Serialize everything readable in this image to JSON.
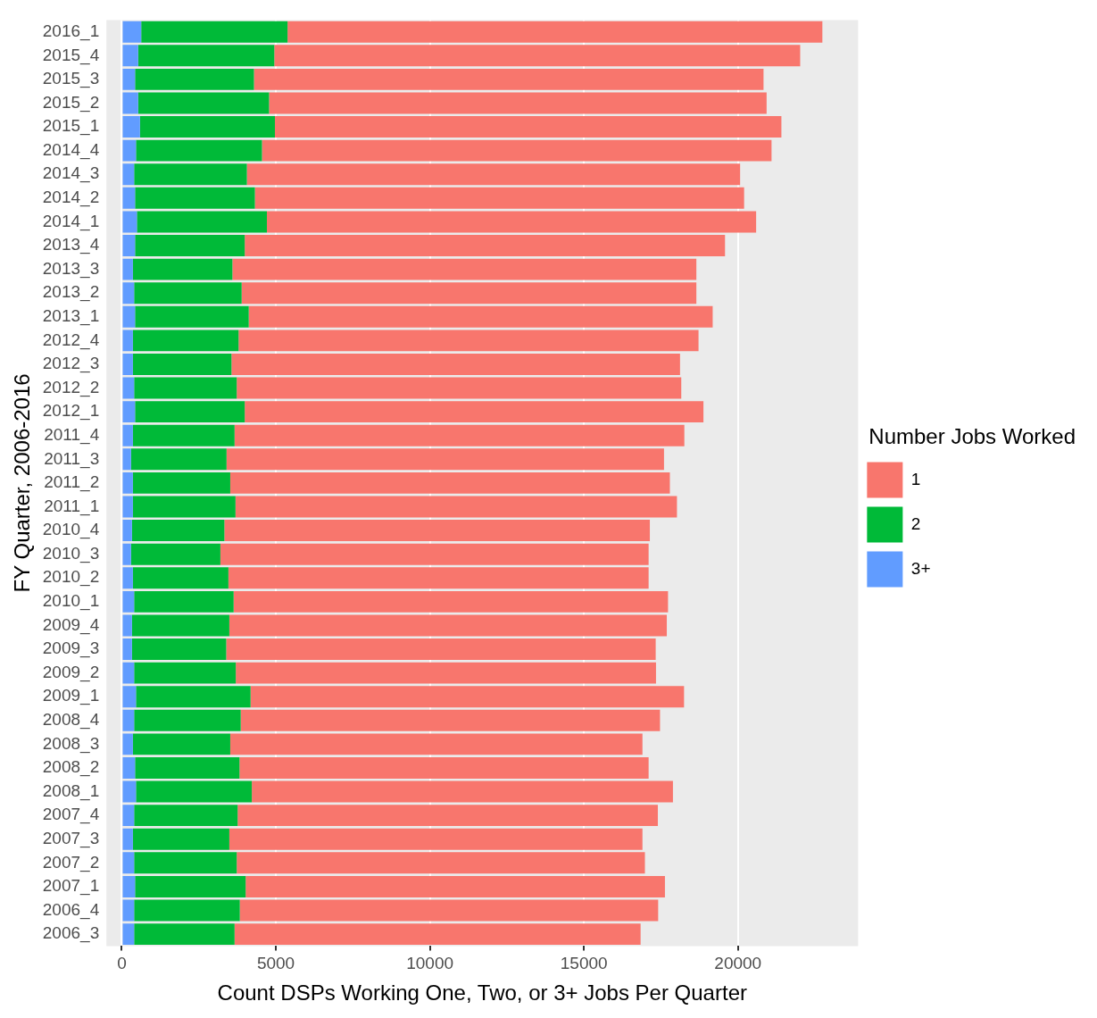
{
  "chart_data": {
    "type": "bar",
    "orientation": "horizontal",
    "stacked": true,
    "xlabel": "Count DSPs Working One, Two, or 3+ Jobs Per Quarter",
    "ylabel": "FY Quarter, 2006-2016",
    "legend_title": "Number Jobs Worked",
    "categories": [
      "2016_1",
      "2015_4",
      "2015_3",
      "2015_2",
      "2015_1",
      "2014_4",
      "2014_3",
      "2014_2",
      "2014_1",
      "2013_4",
      "2013_3",
      "2013_2",
      "2013_1",
      "2012_4",
      "2012_3",
      "2012_2",
      "2012_1",
      "2011_4",
      "2011_3",
      "2011_2",
      "2011_1",
      "2010_4",
      "2010_3",
      "2010_2",
      "2010_1",
      "2009_4",
      "2009_3",
      "2009_2",
      "2009_1",
      "2008_4",
      "2008_3",
      "2008_2",
      "2008_1",
      "2007_4",
      "2007_3",
      "2007_2",
      "2007_1",
      "2006_4",
      "2006_3"
    ],
    "series": [
      {
        "name": "3+",
        "color": "#619cff",
        "values": [
          630,
          530,
          430,
          530,
          590,
          460,
          400,
          430,
          490,
          430,
          360,
          400,
          430,
          360,
          360,
          400,
          430,
          360,
          300,
          360,
          360,
          330,
          300,
          360,
          400,
          330,
          330,
          400,
          460,
          400,
          360,
          430,
          460,
          400,
          360,
          400,
          430,
          400,
          400
        ]
      },
      {
        "name": "2",
        "color": "#00ba38",
        "values": [
          4750,
          4420,
          3860,
          4250,
          4380,
          4090,
          3660,
          3890,
          4220,
          3560,
          3230,
          3490,
          3690,
          3430,
          3200,
          3330,
          3560,
          3300,
          3100,
          3160,
          3330,
          3000,
          2900,
          3100,
          3230,
          3160,
          3060,
          3300,
          3720,
          3460,
          3160,
          3390,
          3760,
          3360,
          3130,
          3330,
          3590,
          3430,
          3260
        ]
      },
      {
        "name": "1",
        "color": "#f8766d",
        "values": [
          17360,
          17070,
          16540,
          16150,
          16440,
          16540,
          16010,
          15880,
          15880,
          15590,
          15060,
          14760,
          15060,
          14930,
          14560,
          14430,
          14890,
          14600,
          14200,
          14270,
          14330,
          13810,
          13900,
          13640,
          14100,
          14200,
          13940,
          13640,
          14070,
          13610,
          13380,
          13280,
          13670,
          13640,
          13410,
          13250,
          13610,
          13580,
          13180
        ]
      }
    ],
    "xlim": [
      -500,
      23900
    ],
    "xticks": [
      0,
      5000,
      10000,
      15000,
      20000
    ],
    "grid": "x",
    "legend": "right"
  }
}
